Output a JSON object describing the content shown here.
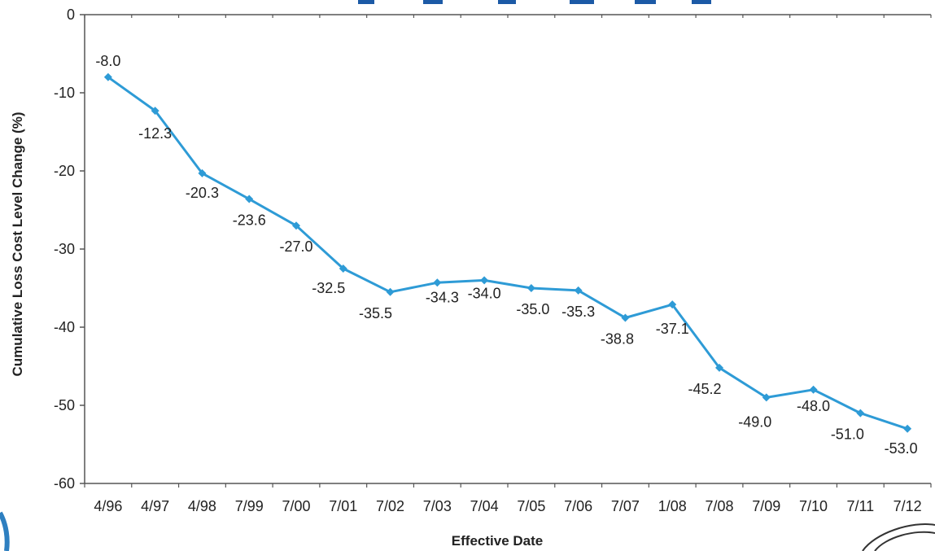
{
  "chart_data": {
    "type": "line",
    "title": "",
    "xlabel": "Effective Date",
    "ylabel": "Cumulative Loss Cost Level Change (%)",
    "ylim": [
      -60,
      0
    ],
    "yticks": [
      0,
      -10,
      -20,
      -30,
      -40,
      -50,
      -60
    ],
    "grid": false,
    "categories": [
      "4/96",
      "4/97",
      "4/98",
      "7/99",
      "7/00",
      "7/01",
      "7/02",
      "7/03",
      "7/04",
      "7/05",
      "7/06",
      "7/07",
      "1/08",
      "7/08",
      "7/09",
      "7/10",
      "7/11",
      "7/12"
    ],
    "series": [
      {
        "values": [
          -8.0,
          -12.3,
          -20.3,
          -23.6,
          -27.0,
          -32.5,
          -35.5,
          -34.3,
          -34.0,
          -35.0,
          -35.3,
          -38.8,
          -37.1,
          -45.2,
          -49.0,
          -48.0,
          -51.0,
          -53.0
        ],
        "labels": [
          "-8.0",
          "-12.3",
          "-20.3",
          "-23.6",
          "-27.0",
          "-32.5",
          "-35.5",
          "-34.3",
          "-34.0",
          "-35.0",
          "-35.3",
          "-38.8",
          "-37.1",
          "-45.2",
          "-49.0",
          "-48.0",
          "-51.0",
          "-53.0"
        ],
        "color": "#2e9bd6"
      }
    ]
  },
  "colors": {
    "line": "#2e9bd6",
    "axis": "#555555",
    "title_fragment": "#1c5aa6"
  }
}
